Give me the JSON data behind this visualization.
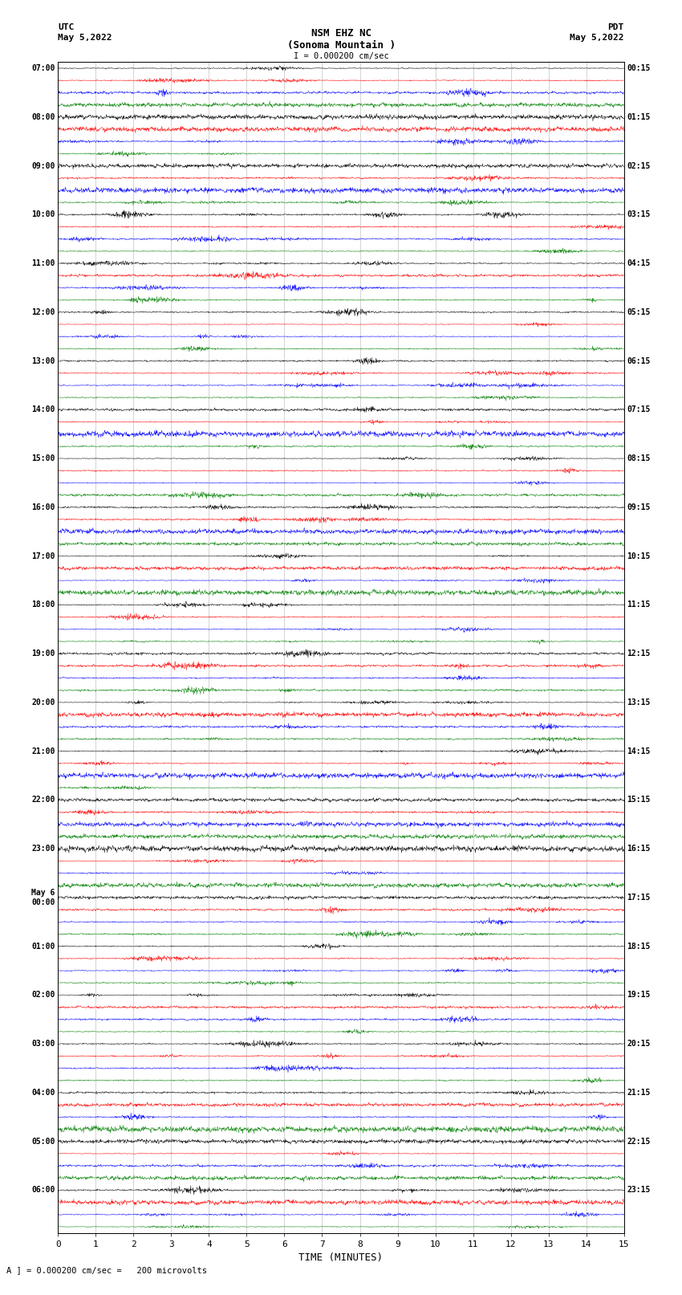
{
  "title_line1": "NSM EHZ NC",
  "title_line2": "(Sonoma Mountain )",
  "scale_label": "I = 0.000200 cm/sec",
  "left_label_top": "UTC",
  "left_label_date": "May 5,2022",
  "right_label_top": "PDT",
  "right_label_date": "May 5,2022",
  "bottom_label": "TIME (MINUTES)",
  "bottom_note": "A ] = 0.000200 cm/sec =   200 microvolts",
  "utc_times": [
    "07:00",
    "08:00",
    "09:00",
    "10:00",
    "11:00",
    "12:00",
    "13:00",
    "14:00",
    "15:00",
    "16:00",
    "17:00",
    "18:00",
    "19:00",
    "20:00",
    "21:00",
    "22:00",
    "23:00",
    "May 6\n00:00",
    "01:00",
    "02:00",
    "03:00",
    "04:00",
    "05:00",
    "06:00"
  ],
  "pdt_times": [
    "00:15",
    "01:15",
    "02:15",
    "03:15",
    "04:15",
    "05:15",
    "06:15",
    "07:15",
    "08:15",
    "09:15",
    "10:15",
    "11:15",
    "12:15",
    "13:15",
    "14:15",
    "15:15",
    "16:15",
    "17:15",
    "18:15",
    "19:15",
    "20:15",
    "21:15",
    "22:15",
    "23:15"
  ],
  "colors": [
    "black",
    "red",
    "blue",
    "green"
  ],
  "n_rows": 24,
  "x_min": 0,
  "x_max": 15,
  "bg_color": "white",
  "seed": 42
}
